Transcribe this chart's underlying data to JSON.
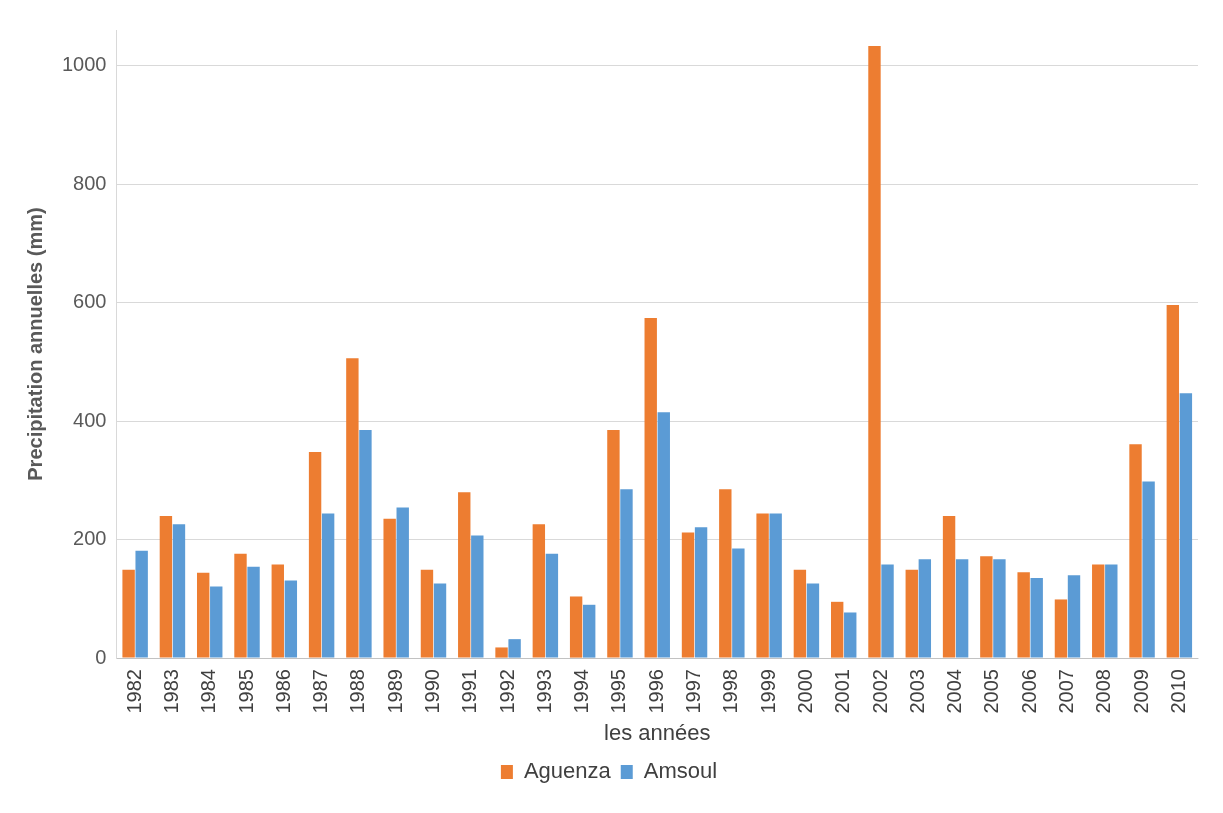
{
  "chart_data": {
    "type": "bar",
    "xlabel": "les années",
    "ylabel": "Precipitation annuelles (mm)",
    "categories": [
      "1982",
      "1983",
      "1984",
      "1985",
      "1986",
      "1987",
      "1988",
      "1989",
      "1990",
      "1991",
      "1992",
      "1993",
      "1994",
      "1995",
      "1996",
      "1997",
      "1998",
      "1999",
      "2000",
      "2001",
      "2002",
      "2003",
      "2004",
      "2005",
      "2006",
      "2007",
      "2008",
      "2009",
      "2010"
    ],
    "series": [
      {
        "name": "Aguenza",
        "color": "#ed7d31",
        "values": [
          149,
          240,
          144,
          176,
          158,
          348,
          506,
          235,
          149,
          280,
          18,
          226,
          104,
          385,
          574,
          212,
          285,
          244,
          149,
          95,
          1033,
          149,
          240,
          172,
          145,
          99,
          158,
          361,
          596
        ]
      },
      {
        "name": "Amsoul",
        "color": "#5b9bd5",
        "values": [
          181,
          226,
          121,
          154,
          131,
          244,
          385,
          254,
          126,
          207,
          32,
          176,
          90,
          285,
          415,
          221,
          185,
          244,
          126,
          77,
          158,
          167,
          167,
          167,
          135,
          140,
          158,
          298,
          447
        ]
      }
    ],
    "ylim": [
      0,
      1060
    ],
    "yticks": [
      0,
      200,
      400,
      600,
      800,
      1000
    ],
    "grid": "y",
    "legend": "bottom"
  }
}
